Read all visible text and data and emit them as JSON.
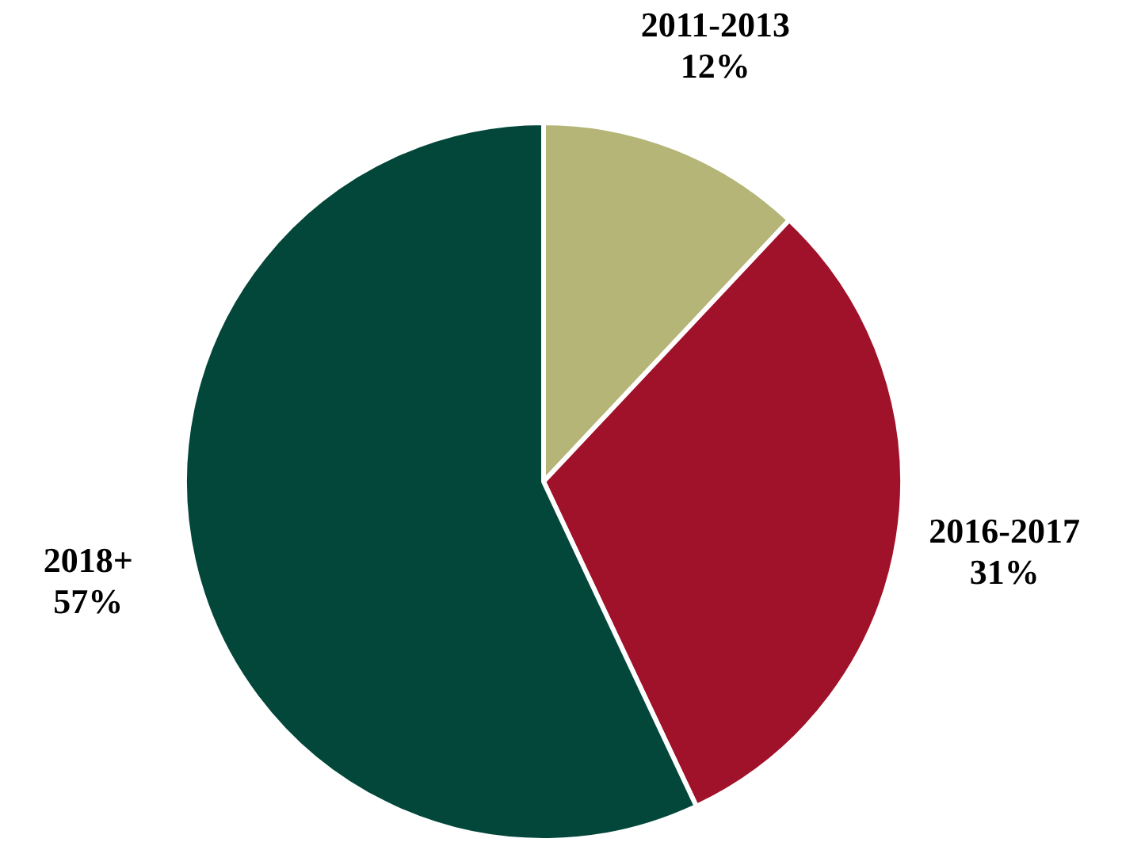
{
  "chart_data": {
    "type": "pie",
    "categories": [
      "2011-2013",
      "2016-2017",
      "2018+"
    ],
    "values": [
      12,
      31,
      57
    ],
    "colors": [
      "#b5b577",
      "#a0122a",
      "#02473a"
    ],
    "value_labels": [
      "12%",
      "31%",
      "57%"
    ],
    "legend": false
  }
}
